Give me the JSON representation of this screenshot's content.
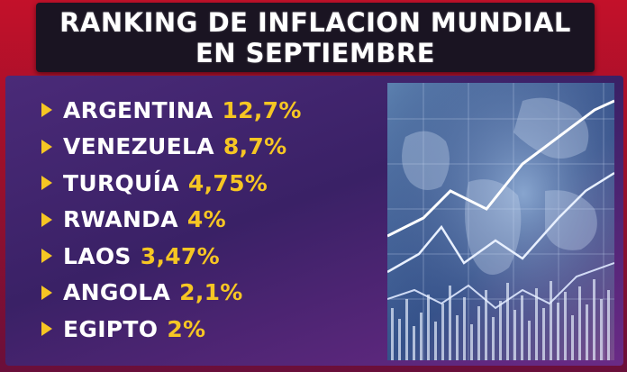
{
  "title": {
    "line1": "RANKING DE INFLACION MUNDIAL",
    "line2": "EN SEPTIEMBRE"
  },
  "ranking": [
    {
      "country": "ARGENTINA",
      "value": "12,7%"
    },
    {
      "country": "VENEZUELA",
      "value": "8,7%"
    },
    {
      "country": "TURQUÍA",
      "value": "4,75%"
    },
    {
      "country": "RWANDA",
      "value": "4%"
    },
    {
      "country": "LAOS",
      "value": "3,47%"
    },
    {
      "country": "ANGOLA",
      "value": "2,1%"
    },
    {
      "country": "EGIPTO",
      "value": "2%"
    }
  ],
  "colors": {
    "accent": "#f6c623",
    "title_bg": "#1a1422",
    "panel": "#3a2166",
    "frame": "#c3112a"
  },
  "graphic": {
    "icon": "world-map-line-chart-icon"
  }
}
